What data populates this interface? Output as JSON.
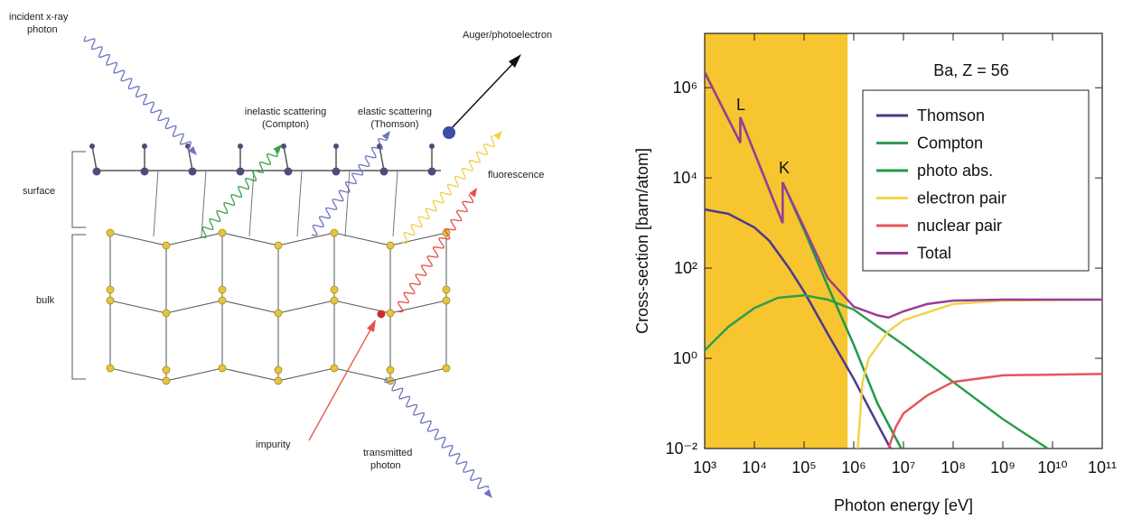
{
  "diagram": {
    "incident": [
      "incident x-ray",
      "photon"
    ],
    "compton": [
      "inelastic scattering",
      "(Compton)"
    ],
    "thomson": [
      "elastic scattering",
      "(Thomson)"
    ],
    "auger": "Auger/photoelectron",
    "fluorescence": "fluorescence",
    "surface": "surface",
    "bulk": "bulk",
    "impurity": "impurity",
    "transmitted": [
      "transmitted",
      "photon"
    ]
  },
  "chart_data": {
    "type": "line",
    "xlabel": "Photon energy [eV]",
    "ylabel": "Cross-section [barn/atom]",
    "xscale": "log",
    "yscale": "log",
    "xlim": [
      1000,
      100000000000
    ],
    "ylim": [
      0.01,
      16000000
    ],
    "xticks": [
      {
        "value": 1000,
        "label": "10³"
      },
      {
        "value": 10000,
        "label": "10⁴"
      },
      {
        "value": 100000,
        "label": "10⁵"
      },
      {
        "value": 1000000,
        "label": "10⁶"
      },
      {
        "value": 10000000,
        "label": "10⁷"
      },
      {
        "value": 100000000,
        "label": "10⁸"
      },
      {
        "value": 1000000000,
        "label": "10⁹"
      },
      {
        "value": 10000000000,
        "label": "10¹⁰"
      },
      {
        "value": 100000000000,
        "label": "10¹¹"
      }
    ],
    "yticks": [
      {
        "value": 0.01,
        "label": "10⁻²"
      },
      {
        "value": 1,
        "label": "10⁰"
      },
      {
        "value": 100,
        "label": "10²"
      },
      {
        "value": 10000,
        "label": "10⁴"
      },
      {
        "value": 1000000,
        "label": "10⁶"
      }
    ],
    "grid": false,
    "legend_title": "Ba, Z = 56",
    "legend": "upper right",
    "annotations": [
      "L",
      "K"
    ],
    "shaded_region": {
      "x": [
        1000,
        750000
      ],
      "color": "#f6c530"
    },
    "series": [
      {
        "name": "Thomson",
        "color": "#4a3a8c",
        "x": [
          1000,
          3000,
          10000,
          20000,
          50000,
          100000,
          300000,
          1000000,
          3000000,
          5500000
        ],
        "values": [
          2000,
          1600,
          800,
          400,
          100,
          30,
          3.5,
          0.35,
          0.035,
          0.01
        ]
      },
      {
        "name": "Compton",
        "color": "#2e9e50",
        "x": [
          1000,
          3000,
          10000,
          30000,
          100000,
          300000,
          1000000,
          10000000,
          100000000,
          1000000000,
          8000000000
        ],
        "values": [
          1.5,
          5,
          13,
          22,
          25,
          20,
          12,
          2,
          0.3,
          0.045,
          0.01
        ]
      },
      {
        "name": "photo abs.",
        "color": "#1f9a48",
        "x": [
          1000,
          5200,
          5200,
          37000,
          37000,
          100000,
          300000,
          1000000,
          3000000,
          9000000
        ],
        "values": [
          2200000,
          60000,
          220000,
          1000,
          8000,
          700,
          40,
          2,
          0.1,
          0.01
        ]
      },
      {
        "name": "electron pair",
        "color": "#f3d34a",
        "x": [
          1200000,
          1500000,
          2000000,
          5000000,
          10000000,
          100000000,
          1000000000,
          100000000000
        ],
        "values": [
          0.01,
          0.3,
          1,
          4,
          7,
          16,
          19,
          20
        ]
      },
      {
        "name": "nuclear pair",
        "color": "#e5565a",
        "x": [
          5000000,
          7000000,
          10000000,
          30000000,
          100000000,
          1000000000,
          100000000000
        ],
        "values": [
          0.01,
          0.03,
          0.06,
          0.15,
          0.3,
          0.42,
          0.45
        ]
      },
      {
        "name": "Total",
        "color": "#9a3d95",
        "x": [
          1000,
          5200,
          5200,
          37000,
          37000,
          100000,
          300000,
          1000000,
          3000000,
          5000000,
          10000000,
          30000000,
          100000000,
          1000000000,
          100000000000
        ],
        "values": [
          2200000,
          60000,
          220000,
          1000,
          8000,
          800,
          60,
          14,
          9,
          8,
          11,
          16,
          19,
          20,
          20
        ]
      }
    ]
  }
}
